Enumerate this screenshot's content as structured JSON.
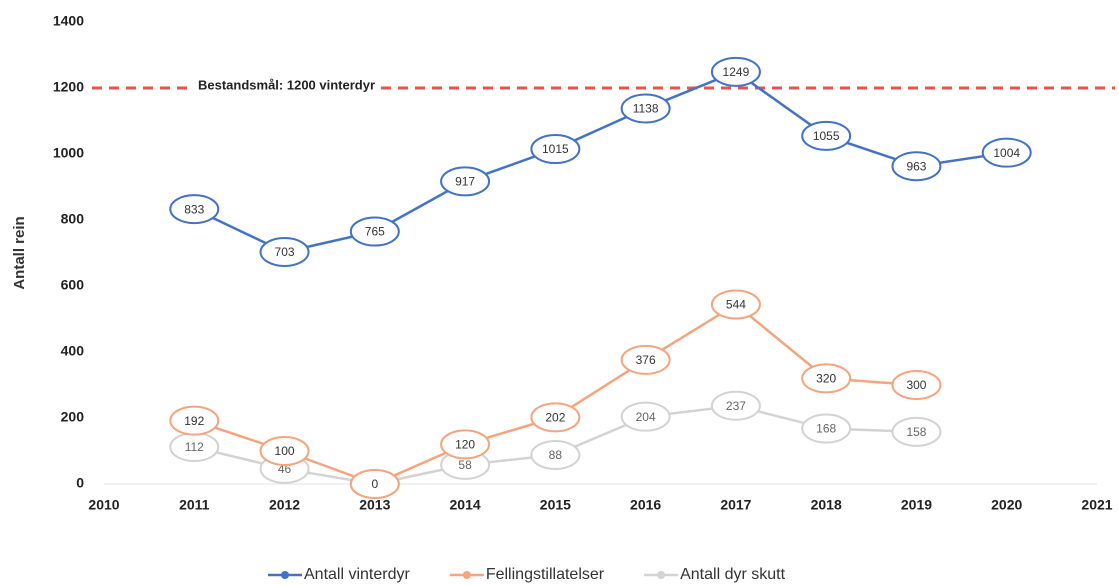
{
  "chart_data": {
    "type": "line",
    "y_label": "Antall rein",
    "x": [
      2011,
      2012,
      2013,
      2014,
      2015,
      2016,
      2017,
      2018,
      2019,
      2020
    ],
    "series": [
      {
        "name": "Antall vinterdyr",
        "color": "#4472c4",
        "values": [
          833,
          703,
          765,
          917,
          1015,
          1138,
          1249,
          1055,
          963,
          1004
        ]
      },
      {
        "name": "Fellingstillatelser",
        "color": "#f4a57e",
        "values": [
          192,
          100,
          0,
          120,
          202,
          376,
          544,
          320,
          300,
          null
        ]
      },
      {
        "name": "Antall dyr skutt",
        "color": "#d3d3d3",
        "values": [
          112,
          46,
          0,
          58,
          88,
          204,
          237,
          168,
          158,
          null
        ]
      }
    ],
    "reference_line": {
      "value": 1200,
      "label": "Bestandsmål: 1200 vinterdyr",
      "color": "#e8534a"
    },
    "xlim": [
      2010,
      2021
    ],
    "xticks": [
      2010,
      2011,
      2012,
      2013,
      2014,
      2015,
      2016,
      2017,
      2018,
      2019,
      2020,
      2021
    ],
    "ylim": [
      0,
      1400
    ],
    "yticks": [
      0,
      200,
      400,
      600,
      800,
      1000,
      1200,
      1400
    ],
    "grid": false,
    "legend": "bottom"
  }
}
